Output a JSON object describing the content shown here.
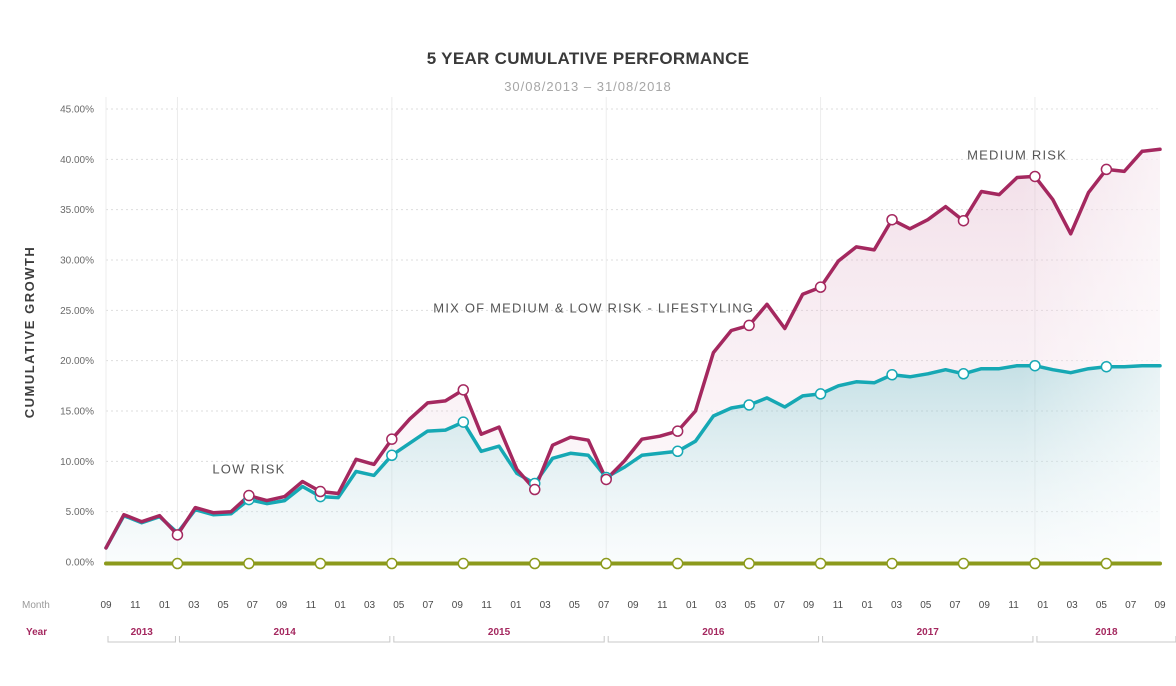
{
  "chart_data": {
    "type": "line",
    "title": "5 YEAR CUMULATIVE PERFORMANCE",
    "subtitle": "30/08/2013 – 31/08/2018",
    "ylabel": "CUMULATIVE GROWTH",
    "ylim": [
      0,
      45
    ],
    "yticks": [
      "0.00%",
      "5.00%",
      "10.00%",
      "15.00%",
      "20.00%",
      "25.00%",
      "30.00%",
      "35.00%",
      "40.00%",
      "45.00%"
    ],
    "grid": true,
    "row_labels": {
      "month": "Month",
      "year": "Year"
    },
    "month_ticks": [
      "09",
      "11",
      "01",
      "03",
      "05",
      "07",
      "09",
      "11",
      "01",
      "03",
      "05",
      "07",
      "09",
      "11",
      "01",
      "03",
      "05",
      "07",
      "09",
      "11",
      "01",
      "03",
      "05",
      "07",
      "09",
      "11",
      "01",
      "03",
      "05",
      "07",
      "09",
      "11",
      "01",
      "03",
      "05",
      "07",
      "09"
    ],
    "years": [
      {
        "label": "2013",
        "start": 0,
        "end": 4
      },
      {
        "label": "2014",
        "start": 4,
        "end": 16
      },
      {
        "label": "2015",
        "start": 16,
        "end": 28
      },
      {
        "label": "2016",
        "start": 28,
        "end": 40
      },
      {
        "label": "2017",
        "start": 40,
        "end": 52
      },
      {
        "label": "2018",
        "start": 52,
        "end": 60
      }
    ],
    "annotations": [
      {
        "text": "MEDIUM RISK",
        "month_index": 51,
        "value": 40.0
      },
      {
        "text": "MIX OF MEDIUM & LOW RISK - LIFESTYLING",
        "month_index": 27.3,
        "value": 24.8
      },
      {
        "text": "LOW RISK",
        "month_index": 8,
        "value": 8.8
      }
    ],
    "series": [
      {
        "name": "MEDIUM RISK",
        "color": "#a4285f",
        "values": [
          1.4,
          4.7,
          4.0,
          4.6,
          2.7,
          5.4,
          4.9,
          5.0,
          6.6,
          6.1,
          6.5,
          8.0,
          7.0,
          6.8,
          10.2,
          9.7,
          12.2,
          14.2,
          15.8,
          16.0,
          17.1,
          12.7,
          13.4,
          9.2,
          7.2,
          11.6,
          12.4,
          12.1,
          8.2,
          10.0,
          12.2,
          12.5,
          13.0,
          15.0,
          20.8,
          23.0,
          23.5,
          25.6,
          23.2,
          26.6,
          27.3,
          29.9,
          31.3,
          31.0,
          34.0,
          33.1,
          34.0,
          35.3,
          33.9,
          36.8,
          36.5,
          38.2,
          38.3,
          36.0,
          32.6,
          36.7,
          39.0,
          38.8,
          40.8,
          41.0
        ],
        "markers": [
          4,
          8,
          12,
          16,
          20,
          24,
          28,
          32,
          36,
          40,
          44,
          48,
          52,
          56
        ]
      },
      {
        "name": "MIX OF MEDIUM & LOW RISK - LIFESTYLING",
        "color": "#16a8b4",
        "values": [
          1.4,
          4.6,
          3.9,
          4.5,
          2.9,
          5.2,
          4.7,
          4.8,
          6.2,
          5.8,
          6.1,
          7.5,
          6.5,
          6.4,
          9.0,
          8.6,
          10.6,
          11.8,
          13.0,
          13.1,
          13.9,
          11.0,
          11.5,
          8.8,
          7.8,
          10.3,
          10.8,
          10.6,
          8.4,
          9.4,
          10.6,
          10.8,
          11.0,
          12.0,
          14.5,
          15.3,
          15.6,
          16.3,
          15.4,
          16.5,
          16.7,
          17.5,
          17.9,
          17.8,
          18.6,
          18.4,
          18.7,
          19.1,
          18.7,
          19.2,
          19.2,
          19.5,
          19.5,
          19.1,
          18.8,
          19.2,
          19.4,
          19.4,
          19.5,
          19.5
        ],
        "markers": [
          8,
          12,
          16,
          20,
          24,
          28,
          32,
          36,
          40,
          44,
          48,
          52,
          56
        ]
      },
      {
        "name": "LOW RISK",
        "color": "#8c9a1c",
        "values": [
          -0.15,
          -0.15,
          -0.15,
          -0.15,
          -0.15,
          -0.15,
          -0.15,
          -0.15,
          -0.15,
          -0.15,
          -0.15,
          -0.15,
          -0.15,
          -0.15,
          -0.15,
          -0.15,
          -0.15,
          -0.15,
          -0.15,
          -0.15,
          -0.15,
          -0.15,
          -0.15,
          -0.15,
          -0.15,
          -0.15,
          -0.15,
          -0.15,
          -0.15,
          -0.15,
          -0.15,
          -0.15,
          -0.15,
          -0.15,
          -0.15,
          -0.15,
          -0.15,
          -0.15,
          -0.15,
          -0.15,
          -0.15,
          -0.15,
          -0.15,
          -0.15,
          -0.15,
          -0.15,
          -0.15,
          -0.15,
          -0.15,
          -0.15,
          -0.15,
          -0.15,
          -0.15,
          -0.15,
          -0.15,
          -0.15,
          -0.15,
          -0.15,
          -0.15,
          -0.15
        ],
        "markers": [
          4,
          8,
          12,
          16,
          20,
          24,
          28,
          32,
          36,
          40,
          44,
          48,
          52,
          56
        ]
      }
    ]
  }
}
